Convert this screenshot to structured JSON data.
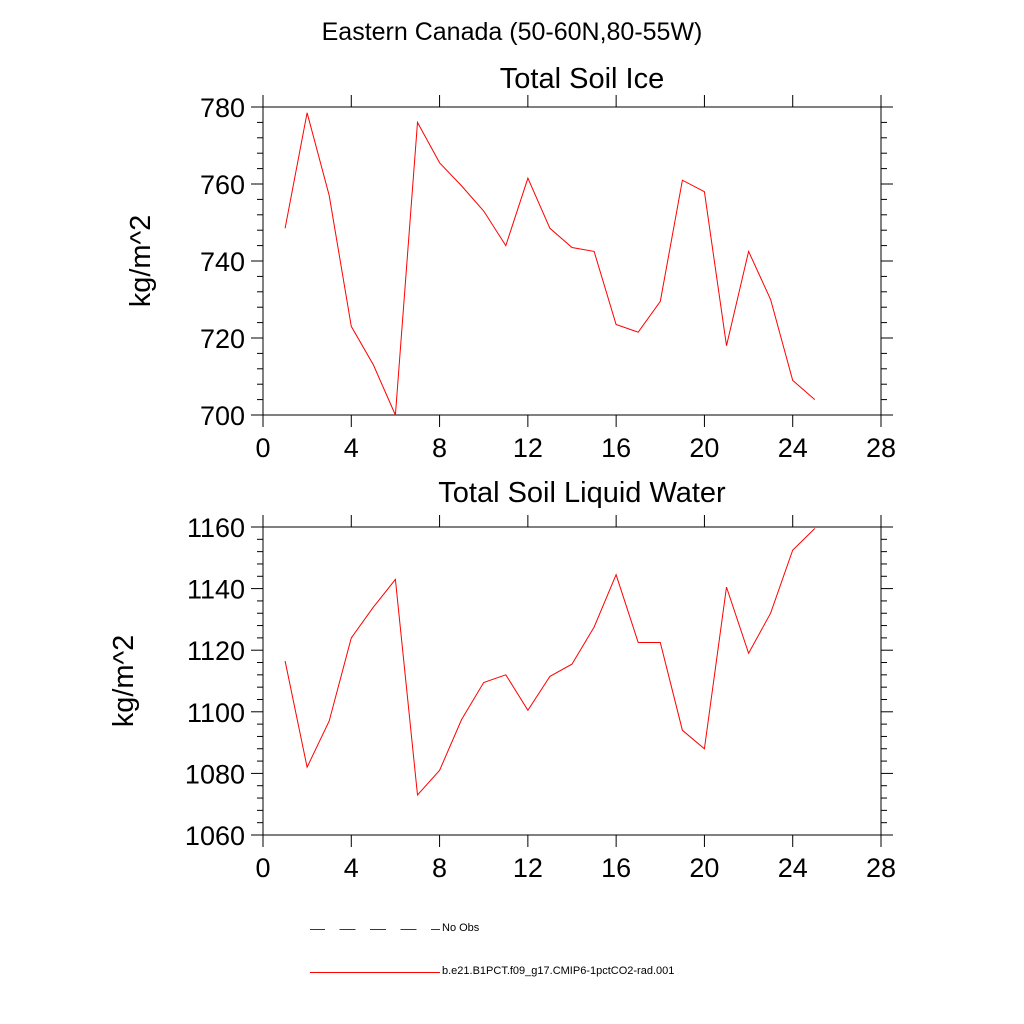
{
  "figure": {
    "title": "Eastern Canada (50-60N,80-55W)"
  },
  "chart_data": [
    {
      "type": "line",
      "title": "Total Soil Ice",
      "ylabel": "kg/m^2",
      "xlabel": "",
      "xlim": [
        0,
        28
      ],
      "ylim": [
        700,
        780
      ],
      "x_ticks": [
        0,
        4,
        8,
        12,
        16,
        20,
        24,
        28
      ],
      "y_ticks": [
        700,
        720,
        740,
        760,
        780
      ],
      "grid": false,
      "series": [
        {
          "name": "b.e21.B1PCT.f09_g17.CMIP6-1pctCO2-rad.001",
          "color": "#ff0000",
          "x": [
            1,
            2,
            3,
            4,
            5,
            6,
            7,
            8,
            9,
            10,
            11,
            12,
            13,
            14,
            15,
            16,
            17,
            18,
            19,
            20,
            21,
            22,
            23,
            24,
            25
          ],
          "y": [
            748.5,
            778.5,
            757,
            723,
            713,
            700,
            776,
            765.5,
            759.5,
            753,
            744,
            761.5,
            748.5,
            743.5,
            742.5,
            723.5,
            721.5,
            729.5,
            761,
            758,
            718,
            742.5,
            730,
            709,
            704
          ]
        }
      ]
    },
    {
      "type": "line",
      "title": "Total Soil Liquid Water",
      "ylabel": "kg/m^2",
      "xlabel": "",
      "xlim": [
        0,
        28
      ],
      "ylim": [
        1060,
        1160
      ],
      "x_ticks": [
        0,
        4,
        8,
        12,
        16,
        20,
        24,
        28
      ],
      "y_ticks": [
        1060,
        1080,
        1100,
        1120,
        1140,
        1160
      ],
      "grid": false,
      "series": [
        {
          "name": "b.e21.B1PCT.f09_g17.CMIP6-1pctCO2-rad.001",
          "color": "#ff0000",
          "x": [
            1,
            2,
            3,
            4,
            5,
            6,
            7,
            8,
            9,
            10,
            11,
            12,
            13,
            14,
            15,
            16,
            17,
            18,
            19,
            20,
            21,
            22,
            23,
            24,
            25
          ],
          "y": [
            1116.5,
            1082,
            1097,
            1124,
            1134,
            1143,
            1073,
            1081,
            1097.5,
            1109.5,
            1112,
            1100.5,
            1111.5,
            1115.5,
            1127.5,
            1144.5,
            1122.5,
            1122.5,
            1094,
            1088,
            1140.5,
            1119,
            1132,
            1152.5,
            1159.5
          ]
        }
      ]
    }
  ],
  "legend": {
    "placement": "bottom",
    "entries": [
      {
        "label": "No Obs",
        "style": "dashed",
        "color": "#333366"
      },
      {
        "label": "b.e21.B1PCT.f09_g17.CMIP6-1pctCO2-rad.001",
        "style": "solid",
        "color": "#ff0000"
      }
    ]
  }
}
